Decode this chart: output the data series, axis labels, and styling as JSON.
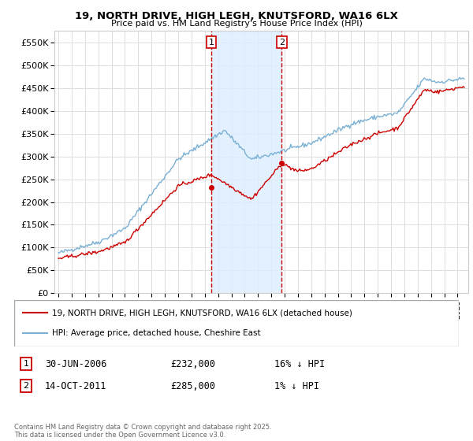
{
  "title1": "19, NORTH DRIVE, HIGH LEGH, KNUTSFORD, WA16 6LX",
  "title2": "Price paid vs. HM Land Registry's House Price Index (HPI)",
  "ylabel_ticks": [
    "£0",
    "£50K",
    "£100K",
    "£150K",
    "£200K",
    "£250K",
    "£300K",
    "£350K",
    "£400K",
    "£450K",
    "£500K",
    "£550K"
  ],
  "ytick_values": [
    0,
    50000,
    100000,
    150000,
    200000,
    250000,
    300000,
    350000,
    400000,
    450000,
    500000,
    550000
  ],
  "ylim": [
    0,
    575000
  ],
  "xlim_start": 1994.7,
  "xlim_end": 2025.8,
  "legend_line1": "19, NORTH DRIVE, HIGH LEGH, KNUTSFORD, WA16 6LX (detached house)",
  "legend_line2": "HPI: Average price, detached house, Cheshire East",
  "sale1_date": "30-JUN-2006",
  "sale1_price": "£232,000",
  "sale1_hpi": "16% ↓ HPI",
  "sale2_date": "14-OCT-2011",
  "sale2_price": "£285,000",
  "sale2_hpi": "1% ↓ HPI",
  "footer": "Contains HM Land Registry data © Crown copyright and database right 2025.\nThis data is licensed under the Open Government Licence v3.0.",
  "red_color": "#cc0000",
  "blue_color": "#7ab0d4",
  "shaded_color": "#ddeeff",
  "vline_color": "#cc0000",
  "bg_color": "#ffffff",
  "grid_color": "#dddddd",
  "sale1_x": 2006.496,
  "sale1_y": 232000,
  "sale2_x": 2011.788,
  "sale2_y": 285000
}
